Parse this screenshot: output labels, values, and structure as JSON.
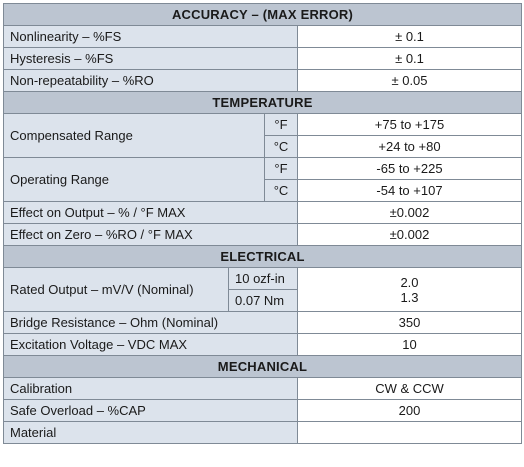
{
  "accuracy": {
    "title": "ACCURACY – (MAX ERROR)",
    "rows": [
      {
        "label": "Nonlinearity – %FS",
        "value": "± 0.1"
      },
      {
        "label": "Hysteresis – %FS",
        "value": "± 0.1"
      },
      {
        "label": "Non-repeatability – %RO",
        "value": "± 0.05"
      }
    ]
  },
  "temperature": {
    "title": "TEMPERATURE",
    "compensated": {
      "label": "Compensated Range",
      "unit_f": "°F",
      "value_f": "+75 to +175",
      "unit_c": "°C",
      "value_c": "+24 to +80"
    },
    "operating": {
      "label": "Operating Range",
      "unit_f": "°F",
      "value_f": "-65 to +225",
      "unit_c": "°C",
      "value_c": "-54 to +107"
    },
    "rows": [
      {
        "label": "Effect on Output – % / °F MAX",
        "value": "±0.002"
      },
      {
        "label": "Effect on Zero – %RO / °F MAX",
        "value": "±0.002"
      }
    ]
  },
  "electrical": {
    "title": "ELECTRICAL",
    "rated_output": {
      "label": "Rated Output – mV/V (Nominal)",
      "cond1": "10 ozf-in",
      "cond2": "0.07 Nm",
      "value1": "2.0",
      "value2": "1.3"
    },
    "rows": [
      {
        "label": "Bridge Resistance – Ohm (Nominal)",
        "value": "350"
      },
      {
        "label": "Excitation Voltage – VDC MAX",
        "value": "10"
      }
    ]
  },
  "mechanical": {
    "title": "MECHANICAL",
    "rows": [
      {
        "label": "Calibration",
        "value": "CW & CCW"
      },
      {
        "label": "Safe Overload – %CAP",
        "value": "200"
      },
      {
        "label": "Material",
        "value": ""
      }
    ]
  }
}
